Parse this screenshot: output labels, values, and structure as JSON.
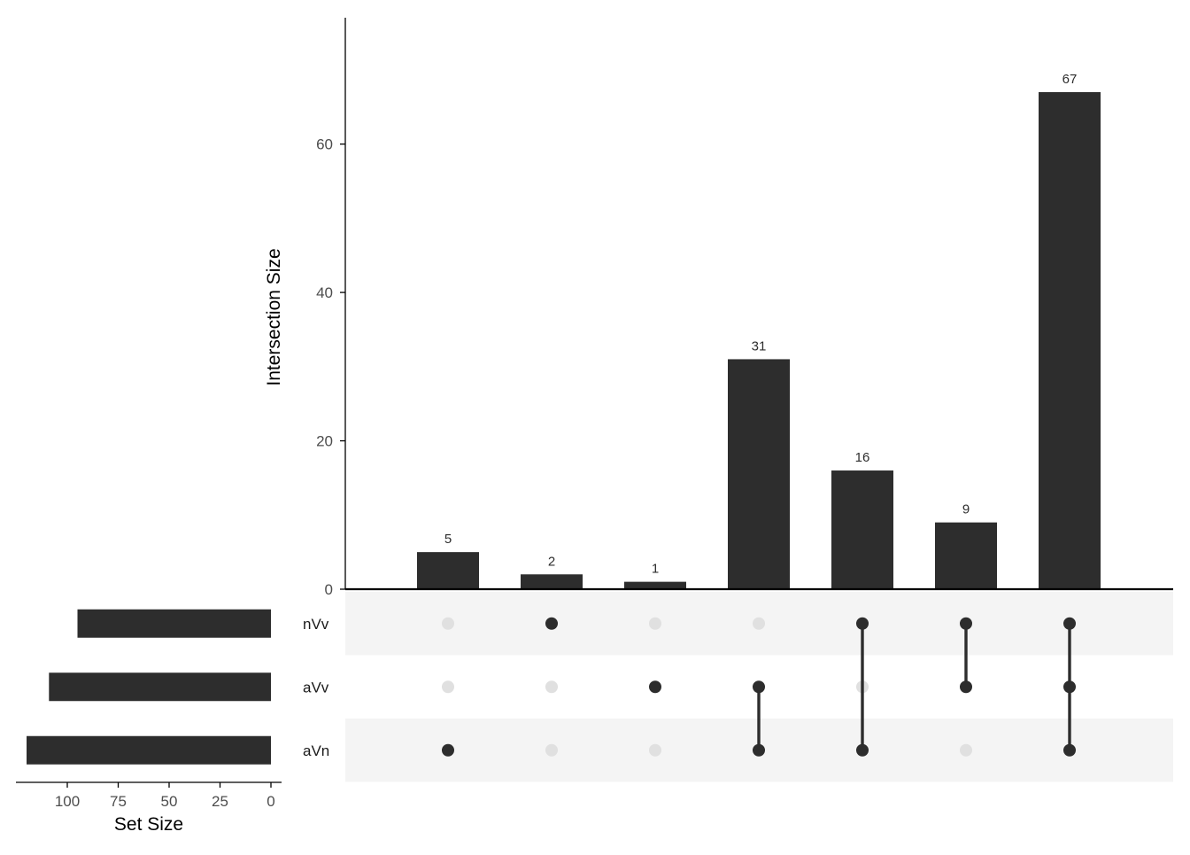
{
  "chart_data": {
    "type": "bar",
    "subtype": "upset",
    "colors": {
      "bar": "#2d2d2d",
      "dot_on": "#2d2d2d",
      "dot_off": "#e0e0e0",
      "stripe": "#f4f4f4",
      "axis": "#000000",
      "tick_text": "#4d4d4d"
    },
    "intersection_axis": {
      "ylabel": "Intersection Size",
      "ticks": [
        0,
        20,
        40,
        60
      ],
      "ylim": [
        0,
        77
      ],
      "grid": false
    },
    "sets": [
      {
        "name": "nVv",
        "size": 95
      },
      {
        "name": "aVv",
        "size": 109
      },
      {
        "name": "aVn",
        "size": 120
      }
    ],
    "set_size_axis": {
      "xlabel": "Set Size",
      "ticks": [
        100,
        75,
        50,
        25,
        0
      ],
      "xlim": [
        0,
        126
      ],
      "reversed": true
    },
    "intersections": [
      {
        "value": 5,
        "label": "5",
        "sets": [
          "aVn"
        ]
      },
      {
        "value": 2,
        "label": "2",
        "sets": [
          "nVv"
        ]
      },
      {
        "value": 1,
        "label": "1",
        "sets": [
          "aVv"
        ]
      },
      {
        "value": 31,
        "label": "31",
        "sets": [
          "aVv",
          "aVn"
        ]
      },
      {
        "value": 16,
        "label": "16",
        "sets": [
          "nVv",
          "aVn"
        ]
      },
      {
        "value": 9,
        "label": "9",
        "sets": [
          "nVv",
          "aVv"
        ]
      },
      {
        "value": 67,
        "label": "67",
        "sets": [
          "nVv",
          "aVv",
          "aVn"
        ]
      }
    ]
  }
}
